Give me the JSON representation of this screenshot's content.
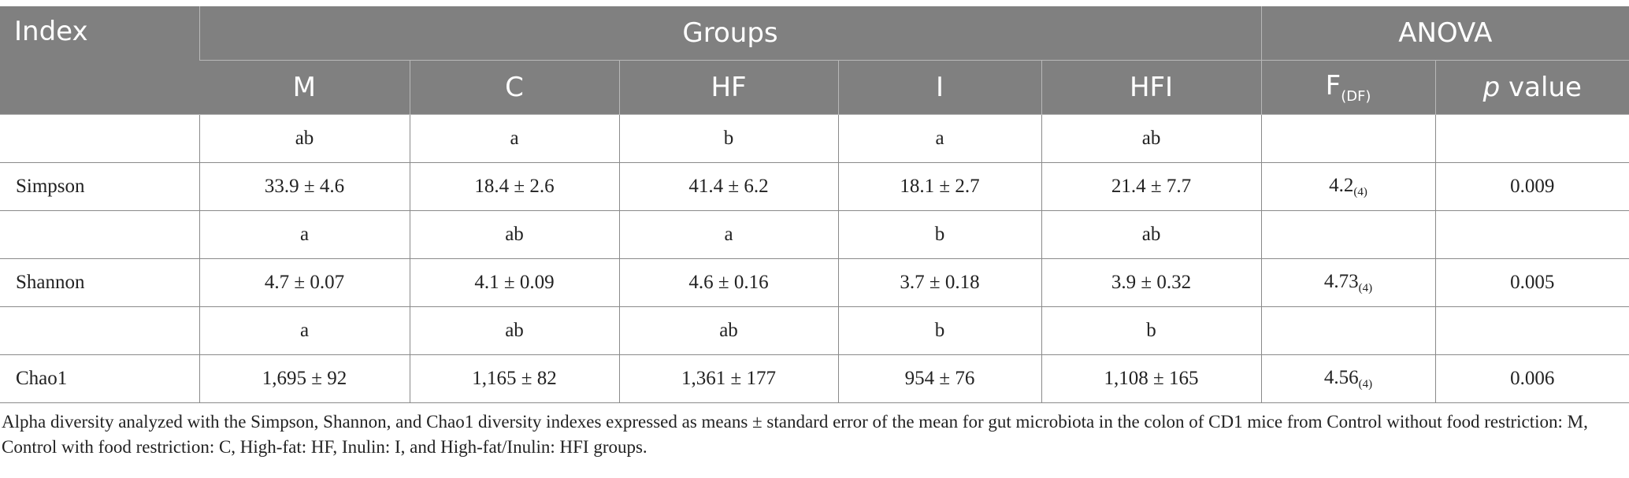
{
  "header": {
    "index": "Index",
    "groups": "Groups",
    "anova": "ANOVA",
    "columns": [
      "M",
      "C",
      "HF",
      "I",
      "HFI"
    ],
    "f_label": "F",
    "f_sub": "(DF)",
    "p_label_italic": "p",
    "p_label_rest": " value"
  },
  "rows": [
    {
      "index": "",
      "values": [
        "ab",
        "a",
        "b",
        "a",
        "ab"
      ],
      "f": "",
      "f_sub": "",
      "p": ""
    },
    {
      "index": "Simpson",
      "values": [
        "33.9 ± 4.6",
        "18.4 ± 2.6",
        "41.4 ± 6.2",
        "18.1 ± 2.7",
        "21.4 ± 7.7"
      ],
      "f": "4.2",
      "f_sub": "(4)",
      "p": "0.009"
    },
    {
      "index": "",
      "values": [
        "a",
        "ab",
        "a",
        "b",
        "ab"
      ],
      "f": "",
      "f_sub": "",
      "p": ""
    },
    {
      "index": "Shannon",
      "values": [
        "4.7 ± 0.07",
        "4.1 ± 0.09",
        "4.6 ± 0.16",
        "3.7 ± 0.18",
        "3.9 ± 0.32"
      ],
      "f": "4.73",
      "f_sub": "(4)",
      "p": "0.005"
    },
    {
      "index": "",
      "values": [
        "a",
        "ab",
        "ab",
        "b",
        "b"
      ],
      "f": "",
      "f_sub": "",
      "p": ""
    },
    {
      "index": "Chao1",
      "values": [
        "1,695 ± 92",
        "1,165 ± 82",
        "1,361 ± 177",
        "954 ± 76",
        "1,108 ± 165"
      ],
      "f": "4.56",
      "f_sub": "(4)",
      "p": "0.006"
    }
  ],
  "caption": "Alpha diversity analyzed with the Simpson, Shannon, and Chao1 diversity indexes expressed as means ± standard error of the mean for gut microbiota in the colon of CD1 mice from Control without food restriction: M, Control with food restriction: C, High-fat: HF, Inulin: I, and High-fat/Inulin: HFI groups."
}
